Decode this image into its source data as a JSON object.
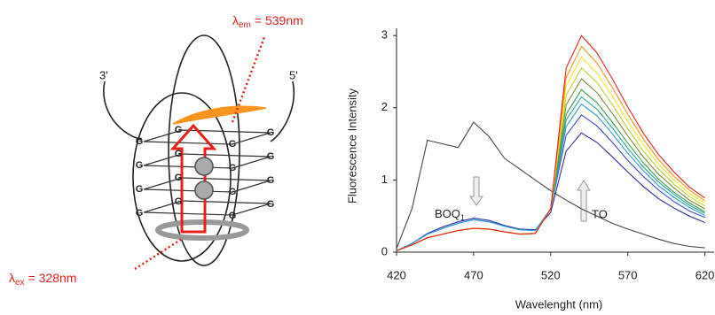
{
  "diagram": {
    "emission": {
      "symbol": "λ",
      "sub": "em",
      "value": "= 539nm"
    },
    "excitation": {
      "symbol": "λ",
      "sub": "ex",
      "value": "= 328nm"
    },
    "end_3": "3'",
    "end_5": "5'",
    "g_labels": [
      "G",
      "G",
      "G",
      "G",
      "G",
      "G",
      "G",
      "G",
      "G",
      "G",
      "G",
      "G",
      "G",
      "G",
      "G",
      "G"
    ]
  },
  "chart_data": {
    "type": "line",
    "ylabel": "Fluorescence Intensity",
    "xlabel": "Wavelenght (nm)",
    "annotations": [
      {
        "text": "BOQ",
        "sub": "1"
      },
      {
        "text": "TO"
      }
    ],
    "x": [
      420,
      430,
      440,
      450,
      460,
      470,
      480,
      490,
      500,
      510,
      520,
      530,
      540,
      550,
      560,
      570,
      580,
      590,
      600,
      610,
      620
    ],
    "xlim": [
      420,
      626
    ],
    "xticks": [
      420,
      470,
      520,
      570,
      620
    ],
    "ylim": [
      0,
      3.1
    ],
    "yticks": [
      0,
      1,
      2,
      3
    ],
    "series": [
      {
        "color": "#444444",
        "values": [
          0.05,
          0.6,
          1.55,
          1.5,
          1.45,
          1.8,
          1.6,
          1.3,
          1.15,
          1.0,
          0.85,
          0.72,
          0.6,
          0.5,
          0.4,
          0.32,
          0.25,
          0.18,
          0.12,
          0.08,
          0.06
        ]
      },
      {
        "color": "#2a2f9a",
        "values": [
          0.02,
          0.12,
          0.26,
          0.35,
          0.42,
          0.47,
          0.44,
          0.37,
          0.32,
          0.31,
          0.55,
          1.4,
          1.65,
          1.52,
          1.32,
          1.11,
          0.91,
          0.74,
          0.61,
          0.5,
          0.41
        ]
      },
      {
        "color": "#3b4fc8",
        "values": [
          0.02,
          0.12,
          0.25,
          0.33,
          0.4,
          0.45,
          0.42,
          0.36,
          0.31,
          0.3,
          0.6,
          1.62,
          1.9,
          1.75,
          1.52,
          1.27,
          1.05,
          0.86,
          0.7,
          0.57,
          0.48
        ]
      },
      {
        "color": "#2b9bd6",
        "values": [
          0.02,
          0.12,
          0.25,
          0.33,
          0.4,
          0.45,
          0.42,
          0.36,
          0.31,
          0.3,
          0.6,
          1.74,
          2.05,
          1.89,
          1.64,
          1.37,
          1.13,
          0.92,
          0.76,
          0.62,
          0.51
        ]
      },
      {
        "color": "#2aa79b",
        "values": [
          0.02,
          0.1,
          0.2,
          0.25,
          0.3,
          0.33,
          0.32,
          0.28,
          0.25,
          0.26,
          0.6,
          1.83,
          2.15,
          1.98,
          1.72,
          1.44,
          1.18,
          0.97,
          0.8,
          0.65,
          0.54
        ]
      },
      {
        "color": "#3aa04a",
        "values": [
          0.02,
          0.1,
          0.2,
          0.25,
          0.3,
          0.33,
          0.32,
          0.28,
          0.25,
          0.26,
          0.6,
          1.91,
          2.25,
          2.07,
          1.8,
          1.51,
          1.24,
          1.01,
          0.83,
          0.68,
          0.56
        ]
      },
      {
        "color": "#7a8b3a",
        "values": [
          0.02,
          0.1,
          0.2,
          0.25,
          0.3,
          0.33,
          0.32,
          0.28,
          0.25,
          0.26,
          0.6,
          2.04,
          2.4,
          2.21,
          1.92,
          1.61,
          1.32,
          1.08,
          0.89,
          0.72,
          0.6
        ]
      },
      {
        "color": "#b5d334",
        "values": [
          0.02,
          0.1,
          0.2,
          0.25,
          0.3,
          0.33,
          0.32,
          0.28,
          0.25,
          0.26,
          0.6,
          2.17,
          2.55,
          2.35,
          2.04,
          1.71,
          1.4,
          1.15,
          0.94,
          0.77,
          0.64
        ]
      },
      {
        "color": "#f5e52a",
        "values": [
          0.02,
          0.1,
          0.2,
          0.25,
          0.3,
          0.33,
          0.32,
          0.28,
          0.25,
          0.26,
          0.6,
          2.3,
          2.7,
          2.48,
          2.16,
          1.81,
          1.49,
          1.22,
          1.0,
          0.81,
          0.68
        ]
      },
      {
        "color": "#f7941d",
        "values": [
          0.02,
          0.1,
          0.2,
          0.25,
          0.3,
          0.33,
          0.32,
          0.28,
          0.25,
          0.26,
          0.6,
          2.42,
          2.85,
          2.62,
          2.28,
          1.91,
          1.57,
          1.28,
          1.05,
          0.86,
          0.71
        ]
      },
      {
        "color": "#e8201c",
        "values": [
          0.02,
          0.1,
          0.2,
          0.25,
          0.3,
          0.33,
          0.32,
          0.28,
          0.25,
          0.26,
          0.6,
          2.55,
          3.0,
          2.76,
          2.4,
          2.01,
          1.65,
          1.35,
          1.11,
          0.9,
          0.75
        ]
      }
    ]
  }
}
